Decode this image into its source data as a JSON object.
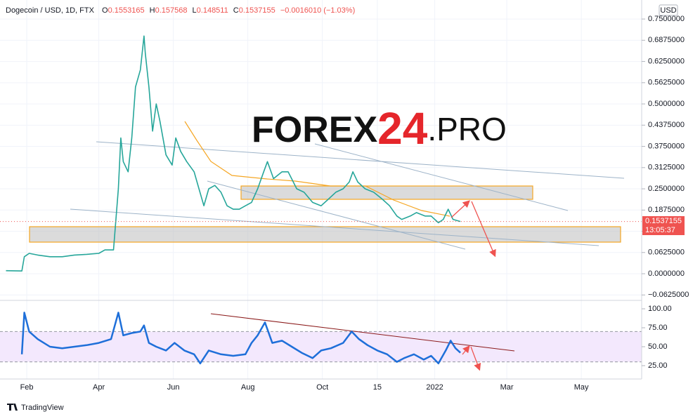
{
  "chart_data": [
    {
      "type": "line",
      "title": "Dogecoin / USD, 1D, FTX",
      "ohlc": {
        "open_label": "O",
        "open": 0.1553165,
        "high_label": "H",
        "high": 0.157568,
        "low_label": "L",
        "low": 0.148511,
        "close_label": "C",
        "close": 0.1537155
      },
      "change_label": "−0.0016010 (−1.03%)",
      "series": [
        {
          "color": "#26a69a",
          "x": [
            14,
            27,
            29,
            33,
            40,
            50,
            60,
            70,
            80,
            90,
            95,
            102,
            106,
            108,
            110,
            114,
            117,
            120,
            124,
            127,
            128,
            131,
            134,
            137,
            140,
            145,
            150,
            153,
            157,
            162,
            168,
            172,
            176,
            180,
            185,
            190,
            195,
            200,
            205,
            210,
            215,
            220,
            225,
            228,
            233,
            240,
            245,
            252,
            258,
            265,
            272,
            278,
            284,
            290,
            295,
            298,
            302,
            308,
            315,
            322,
            328,
            334,
            338,
            345,
            350,
            357,
            362,
            368,
            372,
            376,
            380,
            386
          ],
          "values": [
            0.009,
            0.008,
            0.05,
            0.06,
            0.055,
            0.05,
            0.05,
            0.055,
            0.057,
            0.06,
            0.07,
            0.07,
            0.25,
            0.4,
            0.33,
            0.3,
            0.4,
            0.55,
            0.6,
            0.7,
            0.65,
            0.55,
            0.42,
            0.5,
            0.45,
            0.35,
            0.32,
            0.4,
            0.36,
            0.33,
            0.3,
            0.25,
            0.2,
            0.25,
            0.26,
            0.24,
            0.2,
            0.19,
            0.19,
            0.2,
            0.21,
            0.25,
            0.3,
            0.33,
            0.28,
            0.3,
            0.3,
            0.25,
            0.24,
            0.21,
            0.2,
            0.22,
            0.24,
            0.25,
            0.27,
            0.3,
            0.27,
            0.25,
            0.24,
            0.22,
            0.2,
            0.17,
            0.16,
            0.17,
            0.18,
            0.17,
            0.17,
            0.15,
            0.16,
            0.19,
            0.16,
            0.1537155
          ]
        }
      ],
      "xlim": [
        9.1,
        534.4
      ],
      "xticks": [
        {
          "value": 31,
          "label": "Feb"
        },
        {
          "value": 90,
          "label": "Apr"
        },
        {
          "value": 151,
          "label": "Jun"
        },
        {
          "value": 212,
          "label": "Aug"
        },
        {
          "value": 273,
          "label": "Oct"
        },
        {
          "value": 318,
          "label": "15"
        },
        {
          "value": 365,
          "label": "2022"
        },
        {
          "value": 424,
          "label": "Mar"
        },
        {
          "value": 485,
          "label": "May"
        }
      ],
      "ylim": [
        -0.0785,
        0.806
      ],
      "yticks": [
        {
          "value": 0.75,
          "label": "0.7500000"
        },
        {
          "value": 0.6875,
          "label": "0.6875000"
        },
        {
          "value": 0.625,
          "label": "0.6250000"
        },
        {
          "value": 0.5625,
          "label": "0.5625000"
        },
        {
          "value": 0.5,
          "label": "0.5000000"
        },
        {
          "value": 0.4375,
          "label": "0.4375000"
        },
        {
          "value": 0.375,
          "label": "0.3750000"
        },
        {
          "value": 0.3125,
          "label": "0.3125000"
        },
        {
          "value": 0.25,
          "label": "0.2500000"
        },
        {
          "value": 0.1875,
          "label": "0.1875000"
        },
        {
          "value": 0.125,
          "label": "0.1250000"
        },
        {
          "value": 0.0625,
          "label": "0.0625000"
        },
        {
          "value": 0,
          "label": "0.0000000"
        },
        {
          "value": -0.0625,
          "label": "−0.0625000"
        }
      ],
      "grid": true,
      "currency": "USD",
      "countdown": "13:05:37"
    },
    {
      "type": "line",
      "series": [
        {
          "color": "#1e6fd9",
          "x": [
            27,
            29,
            33,
            40,
            50,
            60,
            70,
            80,
            90,
            100,
            106,
            110,
            117,
            124,
            127,
            131,
            137,
            145,
            152,
            160,
            168,
            173,
            180,
            190,
            200,
            210,
            215,
            220,
            226,
            232,
            240,
            248,
            256,
            265,
            272,
            280,
            290,
            297,
            303,
            310,
            318,
            326,
            334,
            340,
            348,
            356,
            362,
            368,
            374,
            378,
            382,
            386
          ],
          "values": [
            40,
            95,
            70,
            60,
            50,
            48,
            50,
            52,
            55,
            60,
            95,
            65,
            68,
            70,
            78,
            55,
            50,
            45,
            55,
            45,
            40,
            28,
            45,
            40,
            38,
            40,
            55,
            65,
            82,
            55,
            58,
            50,
            42,
            35,
            45,
            48,
            55,
            70,
            60,
            52,
            45,
            40,
            30,
            35,
            40,
            33,
            38,
            28,
            45,
            58,
            48,
            42
          ]
        }
      ],
      "xlim": [
        9.1,
        534.4
      ],
      "ylim": [
        7.4,
        111.1
      ],
      "yticks": [
        {
          "value": 100,
          "label": "100.00"
        },
        {
          "value": 75,
          "label": "75.00"
        },
        {
          "value": 50,
          "label": "50.00"
        },
        {
          "value": 25,
          "label": "25.00"
        }
      ],
      "band": [
        30,
        70
      ]
    }
  ],
  "watermark": [
    "FOREX",
    "24",
    ".PRO"
  ],
  "brand": "TradingView"
}
